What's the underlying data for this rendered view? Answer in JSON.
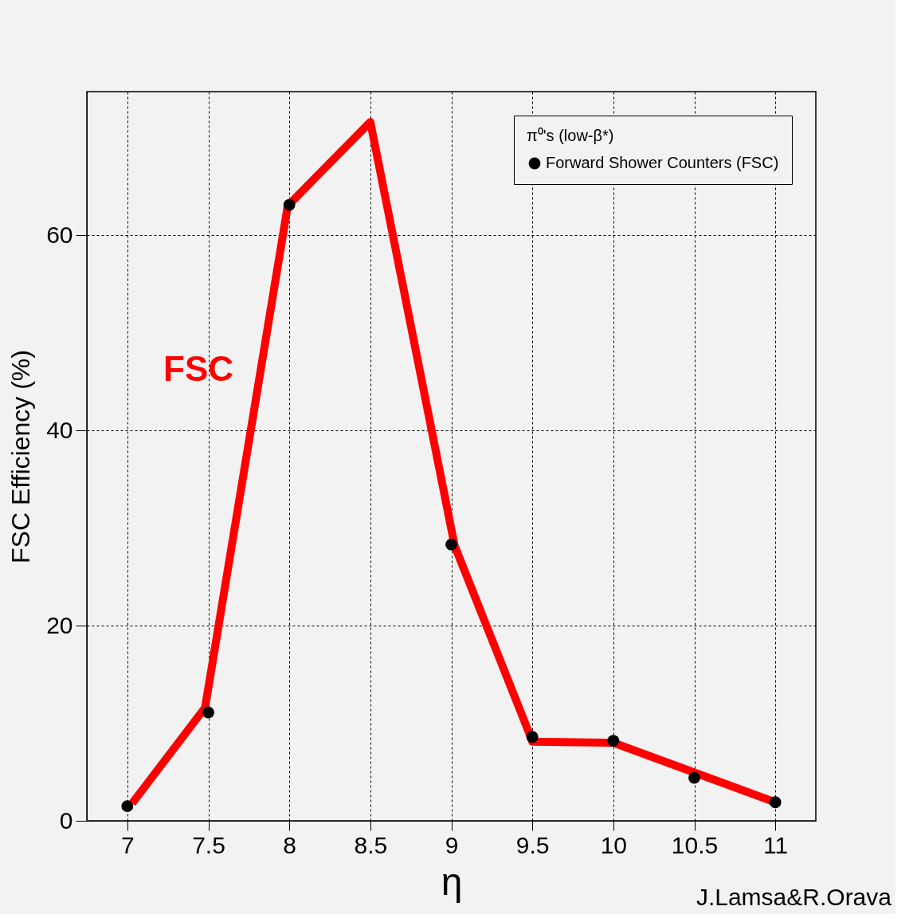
{
  "chart_data": {
    "type": "scatter",
    "xlabel": "η",
    "ylabel": "FSC Efficiency  (%)",
    "legend_title": "π⁰'s  (low-β*)",
    "x": [
      7,
      7.5,
      8,
      8.5,
      9,
      9.5,
      10,
      10.5,
      11
    ],
    "series": [
      {
        "color": "#ff0000",
        "type": "line",
        "line_style": "solid",
        "x": [
          7.03,
          7.48,
          7.99,
          8.5,
          9.02,
          9.48,
          9.5,
          10.0,
          11.0
        ],
        "values": [
          1.8,
          11.6,
          63.0,
          71.6,
          28.2,
          9.0,
          8.1,
          8.0,
          1.9
        ]
      },
      {
        "name": "Forward Shower Counters (FSC)",
        "color": "#000000",
        "marker": "circle",
        "values": [
          1.5,
          11.1,
          63.1,
          null,
          28.3,
          8.6,
          8.2,
          4.4,
          1.9
        ]
      }
    ],
    "xlim": [
      6.75,
      11.25
    ],
    "ylim": [
      0,
      74.7
    ],
    "xticks": [
      7,
      7.5,
      8,
      8.5,
      9,
      9.5,
      10,
      10.5,
      11
    ],
    "yticks": [
      0,
      20,
      40,
      60
    ],
    "grid": true,
    "legend": "top right",
    "annotations": [
      "FSC",
      "J.Lamsa&R.Orava"
    ]
  }
}
